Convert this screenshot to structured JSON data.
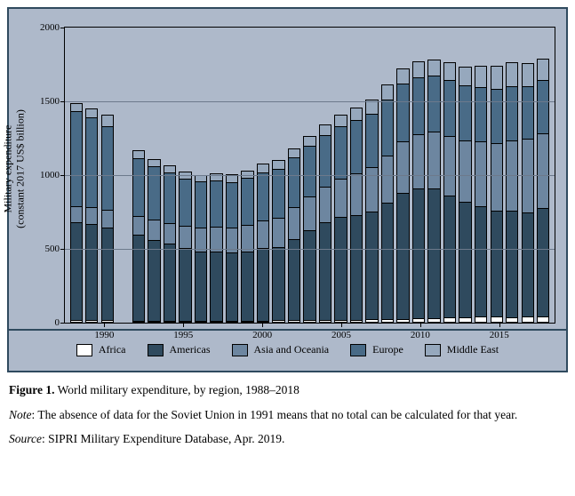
{
  "chart": {
    "type": "stacked-bar",
    "background_color": "#aeb9ca",
    "border_color": "#2f4a5e",
    "grid_color": "#6d7a8c",
    "axis_color": "#000000",
    "ylabel_line1": "Military expenditure",
    "ylabel_line2": "(constant 2017 US$ billion)",
    "ylim": [
      0,
      2000
    ],
    "ytick_step": 500,
    "yticks": [
      0,
      500,
      1000,
      1500,
      2000
    ],
    "ytick_labels": [
      "0",
      "500",
      "1000",
      "1500",
      "2000"
    ],
    "years": [
      1988,
      1989,
      1990,
      1991,
      1992,
      1993,
      1994,
      1995,
      1996,
      1997,
      1998,
      1999,
      2000,
      2001,
      2002,
      2003,
      2004,
      2005,
      2006,
      2007,
      2008,
      2009,
      2010,
      2011,
      2012,
      2013,
      2014,
      2015,
      2016,
      2017,
      2018
    ],
    "xtick_years": [
      1990,
      1995,
      2000,
      2005,
      2010,
      2015
    ],
    "series": [
      {
        "key": "africa",
        "label": "Africa",
        "color": "#ffffff"
      },
      {
        "key": "americas",
        "label": "Americas",
        "color": "#2f4a5e"
      },
      {
        "key": "asiaoceania",
        "label": "Asia and Oceania",
        "color": "#6d86a0"
      },
      {
        "key": "europe",
        "label": "Europe",
        "color": "#496b87"
      },
      {
        "key": "middleeast",
        "label": "Middle East",
        "color": "#96a8bd"
      }
    ],
    "data": {
      "1988": {
        "africa": 17,
        "americas": 664,
        "asiaoceania": 110,
        "europe": 640,
        "middleeast": 60
      },
      "1989": {
        "africa": 17,
        "americas": 650,
        "asiaoceania": 115,
        "europe": 610,
        "middleeast": 58
      },
      "1990": {
        "africa": 17,
        "americas": 630,
        "asiaoceania": 118,
        "europe": 565,
        "middleeast": 80
      },
      "1991": null,
      "1992": {
        "africa": 14,
        "americas": 580,
        "asiaoceania": 130,
        "europe": 390,
        "middleeast": 55
      },
      "1993": {
        "africa": 13,
        "americas": 550,
        "asiaoceania": 135,
        "europe": 360,
        "middleeast": 52
      },
      "1994": {
        "africa": 14,
        "americas": 520,
        "asiaoceania": 140,
        "europe": 345,
        "middleeast": 50
      },
      "1995": {
        "africa": 13,
        "americas": 495,
        "asiaoceania": 150,
        "europe": 320,
        "middleeast": 45
      },
      "1996": {
        "africa": 12,
        "americas": 470,
        "asiaoceania": 160,
        "europe": 315,
        "middleeast": 45
      },
      "1997": {
        "africa": 13,
        "americas": 470,
        "asiaoceania": 165,
        "europe": 315,
        "middleeast": 50
      },
      "1998": {
        "africa": 14,
        "americas": 465,
        "asiaoceania": 165,
        "europe": 310,
        "middleeast": 55
      },
      "1999": {
        "africa": 15,
        "americas": 470,
        "asiaoceania": 175,
        "europe": 320,
        "middleeast": 52
      },
      "2000": {
        "africa": 15,
        "americas": 490,
        "asiaoceania": 185,
        "europe": 330,
        "middleeast": 58
      },
      "2001": {
        "africa": 16,
        "americas": 495,
        "asiaoceania": 200,
        "europe": 330,
        "middleeast": 62
      },
      "2002": {
        "africa": 17,
        "americas": 550,
        "asiaoceania": 215,
        "europe": 340,
        "middleeast": 60
      },
      "2003": {
        "africa": 17,
        "americas": 610,
        "asiaoceania": 230,
        "europe": 345,
        "middleeast": 65
      },
      "2004": {
        "africa": 19,
        "americas": 660,
        "asiaoceania": 245,
        "europe": 350,
        "middleeast": 70
      },
      "2005": {
        "africa": 20,
        "americas": 695,
        "asiaoceania": 260,
        "europe": 355,
        "middleeast": 78
      },
      "2006": {
        "africa": 21,
        "americas": 710,
        "asiaoceania": 280,
        "europe": 360,
        "middleeast": 85
      },
      "2007": {
        "africa": 22,
        "americas": 730,
        "asiaoceania": 300,
        "europe": 365,
        "middleeast": 95
      },
      "2008": {
        "africa": 25,
        "americas": 790,
        "asiaoceania": 320,
        "europe": 380,
        "middleeast": 100
      },
      "2009": {
        "africa": 27,
        "americas": 850,
        "asiaoceania": 355,
        "europe": 390,
        "middleeast": 100
      },
      "2010": {
        "africa": 29,
        "americas": 880,
        "asiaoceania": 370,
        "europe": 385,
        "middleeast": 105
      },
      "2011": {
        "africa": 33,
        "americas": 875,
        "asiaoceania": 385,
        "europe": 380,
        "middleeast": 110
      },
      "2012": {
        "africa": 34,
        "americas": 830,
        "asiaoceania": 400,
        "europe": 380,
        "middleeast": 120
      },
      "2013": {
        "africa": 38,
        "americas": 780,
        "asiaoceania": 420,
        "europe": 370,
        "middleeast": 130
      },
      "2014": {
        "africa": 42,
        "americas": 745,
        "asiaoceania": 440,
        "europe": 370,
        "middleeast": 145
      },
      "2015": {
        "africa": 40,
        "americas": 720,
        "asiaoceania": 460,
        "europe": 365,
        "middleeast": 155
      },
      "2016": {
        "africa": 38,
        "americas": 720,
        "asiaoceania": 475,
        "europe": 370,
        "middleeast": 160
      },
      "2017": {
        "africa": 40,
        "americas": 710,
        "asiaoceania": 495,
        "europe": 360,
        "middleeast": 155
      },
      "2018": {
        "africa": 40,
        "americas": 735,
        "asiaoceania": 507,
        "europe": 364,
        "middleeast": 145
      }
    },
    "label_fontsize": 12,
    "tick_fontsize": 11
  },
  "caption": {
    "figure_label": "Figure 1.",
    "title": "World military expenditure, by region, 1988–2018",
    "note_label": "Note",
    "note_text": "The absence of data for the Soviet Union in 1991 means that no total can be calculated for that year.",
    "source_label": "Source",
    "source_text": "SIPRI Military Expenditure Database, Apr. 2019."
  }
}
